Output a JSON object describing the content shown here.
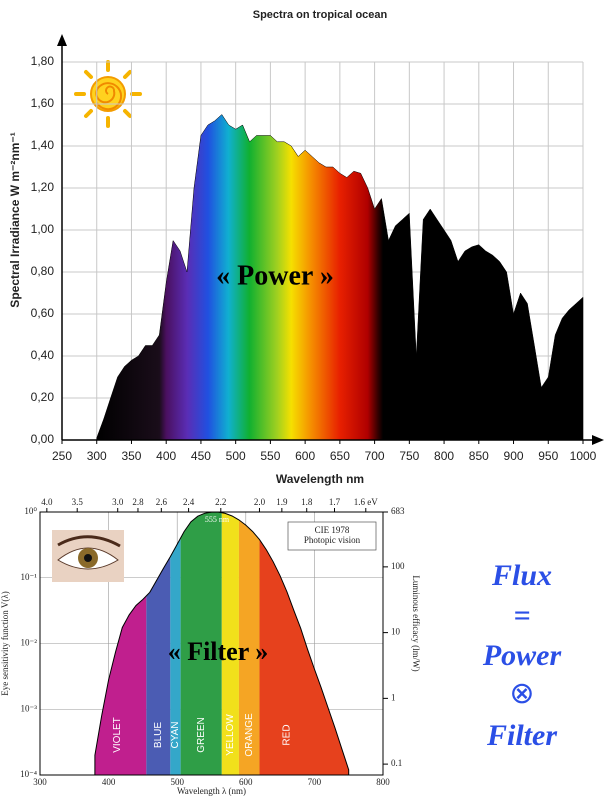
{
  "chart_data": [
    {
      "type": "area",
      "title": "Spectra on tropical ocean",
      "x_label": "Wavelength nm",
      "y_label": "Spectral Irradiance W m⁻²nm⁻¹",
      "annotation": "« Power »",
      "x": [
        300,
        310,
        320,
        330,
        340,
        350,
        360,
        370,
        380,
        390,
        400,
        410,
        420,
        430,
        440,
        450,
        460,
        470,
        480,
        490,
        500,
        510,
        520,
        530,
        540,
        550,
        560,
        570,
        580,
        590,
        600,
        610,
        620,
        630,
        640,
        650,
        660,
        670,
        680,
        690,
        700,
        710,
        720,
        730,
        740,
        750,
        760,
        770,
        780,
        790,
        800,
        810,
        820,
        830,
        840,
        850,
        860,
        870,
        880,
        890,
        900,
        910,
        920,
        930,
        940,
        950,
        960,
        970,
        980,
        990,
        1000
      ],
      "values": [
        0.01,
        0.1,
        0.2,
        0.3,
        0.35,
        0.38,
        0.4,
        0.45,
        0.45,
        0.5,
        0.75,
        0.95,
        0.9,
        0.8,
        1.2,
        1.45,
        1.5,
        1.52,
        1.55,
        1.5,
        1.48,
        1.5,
        1.42,
        1.45,
        1.45,
        1.45,
        1.42,
        1.42,
        1.4,
        1.35,
        1.38,
        1.35,
        1.32,
        1.3,
        1.3,
        1.27,
        1.25,
        1.28,
        1.27,
        1.2,
        1.1,
        1.15,
        0.95,
        1.02,
        1.05,
        1.08,
        0.4,
        1.05,
        1.1,
        1.05,
        1.0,
        0.95,
        0.85,
        0.9,
        0.92,
        0.93,
        0.9,
        0.88,
        0.85,
        0.8,
        0.6,
        0.7,
        0.65,
        0.45,
        0.25,
        0.3,
        0.5,
        0.58,
        0.62,
        0.65,
        0.68
      ],
      "color": "#000000",
      "xlim": [
        250,
        1000
      ],
      "xticks": [
        250,
        300,
        350,
        400,
        450,
        500,
        550,
        600,
        650,
        700,
        750,
        800,
        850,
        900,
        950,
        1000
      ],
      "ylim": [
        0,
        1.8
      ],
      "yticks": [
        {
          "value": 0,
          "label": "0,00"
        },
        {
          "value": 0.2,
          "label": "0,20"
        },
        {
          "value": 0.4,
          "label": "0,40"
        },
        {
          "value": 0.6,
          "label": "0,60"
        },
        {
          "value": 0.8,
          "label": "0,80"
        },
        {
          "value": 1.0,
          "label": "1,00"
        },
        {
          "value": 1.2,
          "label": "1,20"
        },
        {
          "value": 1.4,
          "label": "1,40"
        },
        {
          "value": 1.6,
          "label": "1,60"
        },
        {
          "value": 1.8,
          "label": "1,80"
        }
      ],
      "grid": true
    },
    {
      "type": "area",
      "x_label": "Wavelength λ (nm)",
      "y_label": "Eye sensitivity function V(λ)",
      "y2_label": "Luminous efficacy (lm/W)",
      "annotation": "« Filter »",
      "peak_label": "555 nm",
      "legend_box": [
        "CIE 1978",
        "Photopic vision"
      ],
      "x": [
        380,
        390,
        400,
        410,
        420,
        430,
        440,
        450,
        460,
        470,
        480,
        490,
        500,
        510,
        520,
        530,
        540,
        550,
        555,
        560,
        570,
        580,
        590,
        600,
        610,
        620,
        630,
        640,
        650,
        660,
        670,
        680,
        690,
        700,
        710,
        720,
        730,
        740,
        750
      ],
      "values": [
        0.0002,
        0.0008,
        0.0028,
        0.0074,
        0.0175,
        0.0273,
        0.0379,
        0.0468,
        0.06,
        0.091,
        0.139,
        0.208,
        0.323,
        0.503,
        0.71,
        0.862,
        0.954,
        0.995,
        1.0,
        0.995,
        0.952,
        0.87,
        0.757,
        0.631,
        0.503,
        0.381,
        0.265,
        0.175,
        0.107,
        0.061,
        0.032,
        0.017,
        0.0082,
        0.0041,
        0.0021,
        0.00105,
        0.00052,
        0.00025,
        0.00012
      ],
      "color": "#000000",
      "xlim": [
        300,
        800
      ],
      "xticks": [
        300,
        400,
        500,
        600,
        700,
        800
      ],
      "x2ticks": [
        {
          "value": 4.0,
          "label": "4.0"
        },
        3.5,
        {
          "value": 3.0,
          "label": "3.0"
        },
        2.8,
        2.6,
        2.4,
        2.2,
        {
          "value": 2.0,
          "label": "2.0"
        },
        1.9,
        1.8,
        1.7,
        {
          "value": 1.6,
          "label": "1.6 eV"
        }
      ],
      "ylog": true,
      "ylim": [
        0.0001,
        1
      ],
      "yticks": [
        {
          "value": 0.0001,
          "label": "10⁻⁴"
        },
        {
          "value": 0.001,
          "label": "10⁻³"
        },
        {
          "value": 0.01,
          "label": "10⁻²"
        },
        {
          "value": 0.1,
          "label": "10⁻¹"
        },
        {
          "value": 1,
          "label": "10⁰"
        }
      ],
      "y2lim": [
        0.0683,
        683
      ],
      "y2ticks": [
        0.1,
        1,
        10,
        100,
        683
      ],
      "grid": true,
      "bands": [
        {
          "name": "VIOLET",
          "color": "#c01f8e",
          "x": [
            370,
            455
          ]
        },
        {
          "name": "BLUE",
          "color": "#4b5cb3",
          "x": [
            455,
            490
          ]
        },
        {
          "name": "CYAN",
          "color": "#34a7c9",
          "x": [
            490,
            505
          ]
        },
        {
          "name": "GREEN",
          "color": "#2f9e47",
          "x": [
            505,
            565
          ]
        },
        {
          "name": "YELLOW",
          "color": "#f1e01b",
          "x": [
            565,
            590
          ]
        },
        {
          "name": "ORANGE",
          "color": "#f5a524",
          "x": [
            590,
            620
          ]
        },
        {
          "name": "RED",
          "color": "#e6411d",
          "x": [
            620,
            760
          ]
        }
      ]
    }
  ],
  "formula": [
    "Flux",
    "=",
    "Power",
    "⊗",
    "Filter"
  ]
}
